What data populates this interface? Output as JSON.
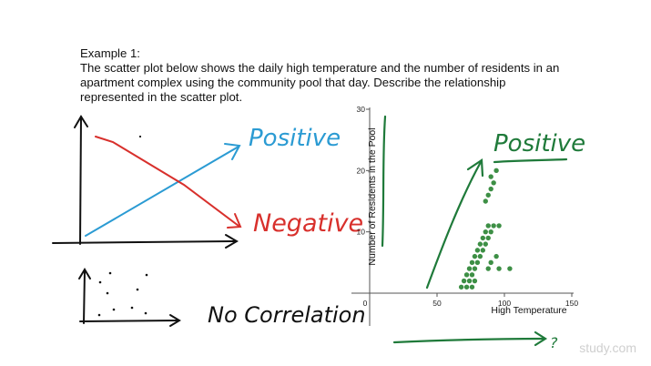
{
  "problem": {
    "heading": "Example 1:",
    "lines": [
      "The scatter plot below shows the daily high temperature and the number of residents in an",
      "apartment complex using the community pool that day. Describe the relationship",
      "represented in the scatter plot."
    ]
  },
  "annotations": {
    "positive_left": "Positive",
    "negative": "Negative",
    "no_correlation": "No Correlation",
    "positive_right": "Positive",
    "question_mark": "?"
  },
  "colors": {
    "blue": "#2b9bd3",
    "red": "#d8302c",
    "green": "#1f7a3a",
    "points": "#3d8f45",
    "ink": "#111111"
  },
  "watermark": "study.com",
  "chart_data": {
    "type": "scatter",
    "title": "",
    "xlabel": "High Temperature",
    "ylabel": "Number of Residents in the Pool",
    "xlim": [
      0,
      150
    ],
    "ylim": [
      0,
      30
    ],
    "xticks": [
      0,
      50,
      100,
      150
    ],
    "yticks": [
      10,
      20,
      30
    ],
    "grid": false,
    "points": [
      [
        68,
        1
      ],
      [
        72,
        1
      ],
      [
        76,
        1
      ],
      [
        70,
        2
      ],
      [
        74,
        2
      ],
      [
        78,
        2
      ],
      [
        72,
        3
      ],
      [
        76,
        3
      ],
      [
        74,
        4
      ],
      [
        78,
        4
      ],
      [
        88,
        4
      ],
      [
        96,
        4
      ],
      [
        104,
        4
      ],
      [
        76,
        5
      ],
      [
        80,
        5
      ],
      [
        90,
        5
      ],
      [
        78,
        6
      ],
      [
        82,
        6
      ],
      [
        94,
        6
      ],
      [
        80,
        7
      ],
      [
        84,
        7
      ],
      [
        82,
        8
      ],
      [
        86,
        8
      ],
      [
        84,
        9
      ],
      [
        88,
        9
      ],
      [
        86,
        10
      ],
      [
        90,
        10
      ],
      [
        88,
        11
      ],
      [
        92,
        11
      ],
      [
        96,
        11
      ],
      [
        86,
        15
      ],
      [
        88,
        16
      ],
      [
        90,
        17
      ],
      [
        92,
        18
      ],
      [
        90,
        19
      ],
      [
        94,
        20
      ]
    ]
  }
}
